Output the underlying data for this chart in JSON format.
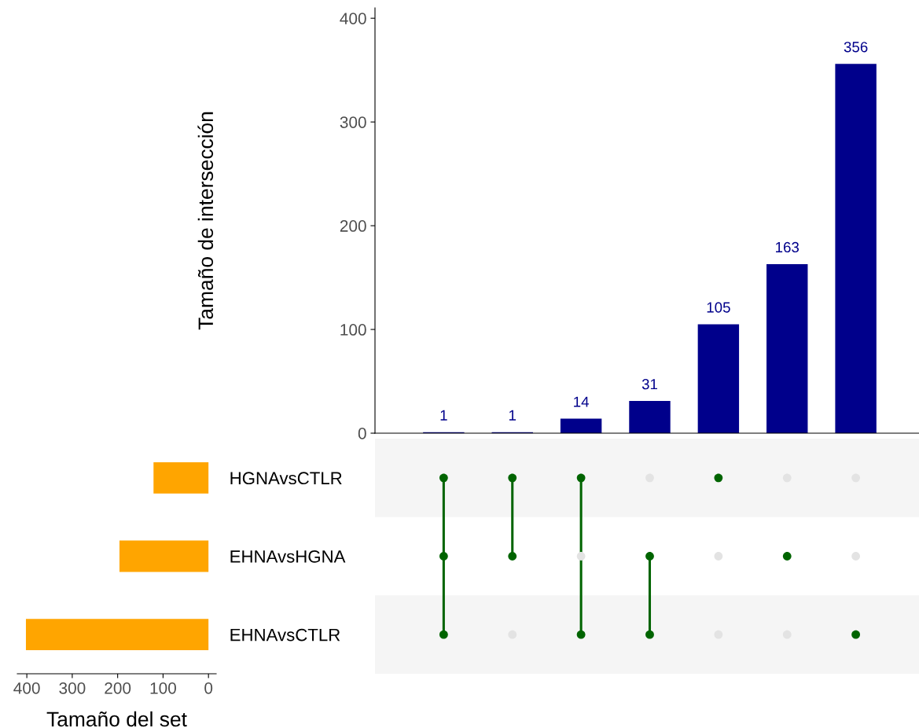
{
  "chart_data": [
    {
      "type": "bar",
      "ylabel": "Tamaño de intersección",
      "categories": [
        null,
        null,
        null,
        null,
        null,
        null,
        null
      ],
      "values": [
        1,
        1,
        14,
        31,
        105,
        163,
        356
      ],
      "color": "#00008b",
      "ylim": [
        0,
        410
      ],
      "yticks": [
        0,
        100,
        200,
        300,
        400
      ],
      "data_labels": true,
      "tick_labels": "y",
      "grid": false
    },
    {
      "type": "bar",
      "orientation": "horizontal",
      "xlabel": "Tamaño del set",
      "categories": [
        "HGNAvsCTLR",
        "EHNAvsHGNA",
        "EHNAvsCTLR"
      ],
      "values": [
        121,
        196,
        402
      ],
      "color": "#ffa500",
      "xlim": [
        421,
        -17
      ],
      "xticks": [
        400,
        300,
        200,
        100,
        0
      ],
      "grid": false
    },
    {
      "type": "other",
      "categories": [
        null,
        null,
        null,
        null,
        null,
        null,
        null
      ],
      "cells": [
        [
          true,
          true,
          true,
          false,
          true,
          false,
          false
        ],
        [
          true,
          true,
          false,
          true,
          false,
          true,
          false
        ],
        [
          true,
          false,
          true,
          true,
          false,
          false,
          true
        ]
      ],
      "color": "#006400"
    }
  ]
}
